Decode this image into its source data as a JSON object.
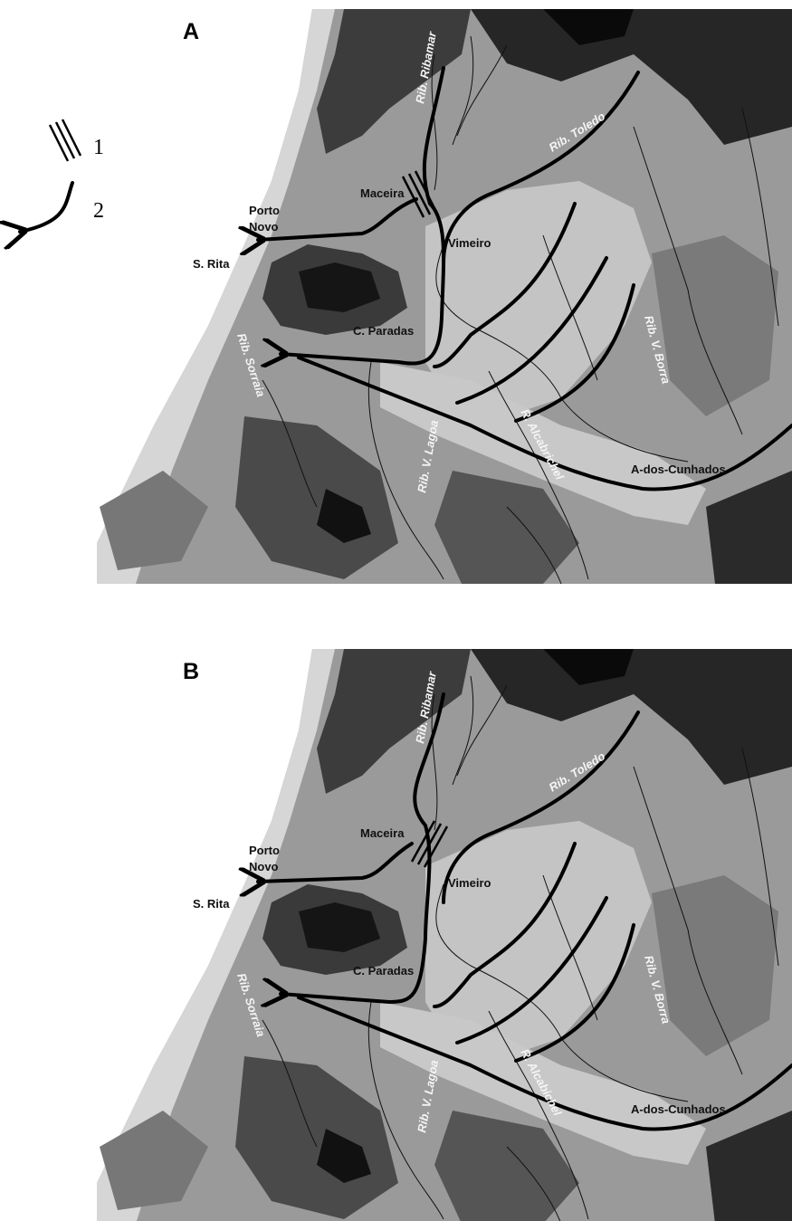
{
  "legend": [
    {
      "label": "1"
    },
    {
      "label": "2"
    }
  ],
  "panels": [
    {
      "label": "A",
      "places": [
        "Rib. Ribamar",
        "Rib. Toledo",
        "Maceira",
        "Porto",
        "Novo",
        "Vimeiro",
        "S. Rita",
        "Rib. Sorraia",
        "C. Paradas",
        "Rib. V. Borra",
        "R. Alcabrichel",
        "A-dos-Cunhados",
        "Rib. V. Lagoa"
      ]
    },
    {
      "label": "B",
      "places": [
        "Rib. Ribamar",
        "Rib. Toledo",
        "Maceira",
        "Porto",
        "Novo",
        "Vimeiro",
        "S. Rita",
        "Rib. Sorraia",
        "C. Paradas",
        "Rib. V. Borra",
        "R. Alcabichel",
        "A-dos-Cunhados",
        "Rib. V. Lagoa"
      ]
    }
  ]
}
